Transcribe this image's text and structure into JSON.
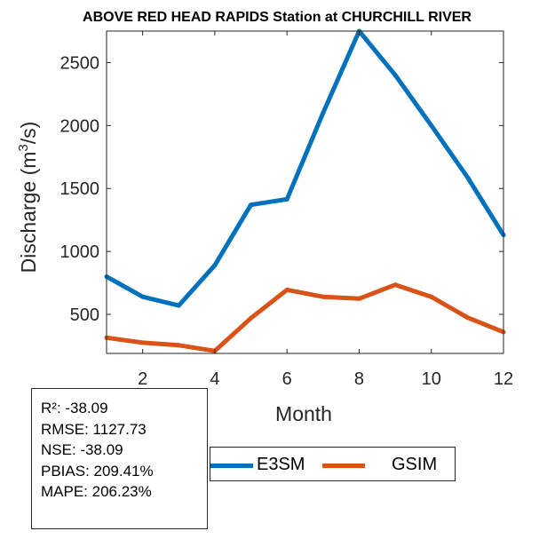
{
  "chart_data": {
    "type": "line",
    "title": "ABOVE RED HEAD RAPIDS  Station at  CHURCHILL RIVER",
    "xlabel": "Month",
    "ylabel_main": "Discharge (m",
    "ylabel_sup": "3",
    "ylabel_end": "/s)",
    "xlim": [
      1,
      12
    ],
    "ylim": [
      190,
      2750
    ],
    "xticks": [
      2,
      4,
      6,
      8,
      10,
      12
    ],
    "yticks": [
      500,
      1000,
      1500,
      2000,
      2500
    ],
    "x": [
      1,
      2,
      3,
      4,
      5,
      6,
      7,
      8,
      9,
      10,
      11,
      12
    ],
    "series": [
      {
        "name": "E3SM",
        "color": "#0072BD",
        "values": [
          800,
          640,
          570,
          890,
          1370,
          1415,
          2100,
          2750,
          2400,
          2000,
          1590,
          1130
        ]
      },
      {
        "name": "GSIM",
        "color": "#D95319",
        "values": [
          315,
          275,
          255,
          210,
          470,
          695,
          640,
          625,
          735,
          640,
          475,
          360
        ]
      }
    ]
  },
  "stats": [
    "R²: -38.09",
    "RMSE: 1127.73",
    "NSE: -38.09",
    "PBIAS: 209.41%",
    "MAPE: 206.23%"
  ],
  "legend": [
    "E3SM",
    "GSIM"
  ]
}
